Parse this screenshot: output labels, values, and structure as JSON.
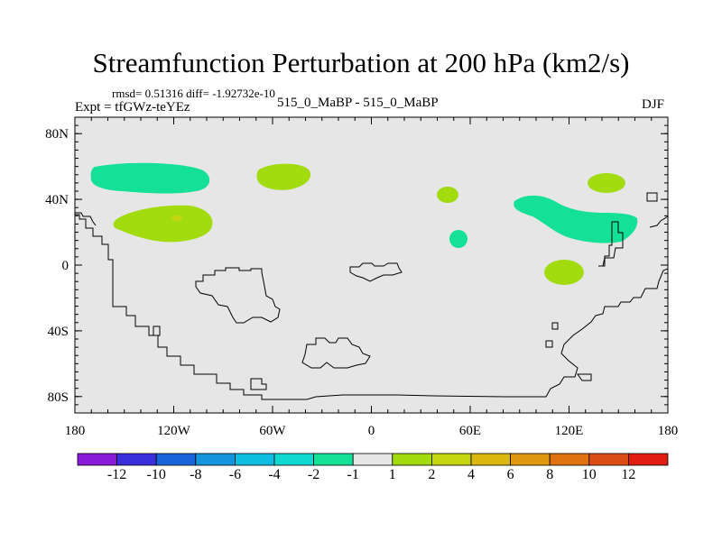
{
  "chart_data": {
    "type": "heatmap",
    "title": "Streamfunction Perturbation at 200 hPa (km2/s)",
    "stats_text": "rmsd= 0.51316 diff= -1.92732e-10",
    "experiment_text": "Expt = tfGWz-teYEz",
    "cases_text": "515_0_MaBP - 515_0_MaBP",
    "season": "DJF",
    "x_range": [
      -180,
      180
    ],
    "y_range": [
      -90,
      90
    ],
    "x_ticks": [
      {
        "value": -180,
        "label": "180"
      },
      {
        "value": -120,
        "label": "120W"
      },
      {
        "value": -60,
        "label": "60W"
      },
      {
        "value": 0,
        "label": "0"
      },
      {
        "value": 60,
        "label": "60E"
      },
      {
        "value": 120,
        "label": "120E"
      },
      {
        "value": 180,
        "label": "180"
      }
    ],
    "y_ticks": [
      {
        "value": 80,
        "label": "80N"
      },
      {
        "value": 40,
        "label": "40N"
      },
      {
        "value": 0,
        "label": "0"
      },
      {
        "value": -40,
        "label": "40S"
      },
      {
        "value": -80,
        "label": "80S"
      }
    ],
    "colorbar": {
      "colors": [
        "#8a19d9",
        "#3b2fdc",
        "#1764d9",
        "#1594de",
        "#10bde2",
        "#10d7cf",
        "#14e197",
        "#e6e6e6",
        "#a2dc0f",
        "#c4d60f",
        "#dbb80f",
        "#e0980f",
        "#e0730f",
        "#dc4d13",
        "#e01c13"
      ],
      "labels": [
        "-12",
        "-10",
        "-8",
        "-6",
        "-4",
        "-2",
        "-1",
        "1",
        "2",
        "4",
        "6",
        "8",
        "10",
        "12"
      ]
    },
    "background_color": "#e6e6e6",
    "anomaly_regions": [
      {
        "name": "north-pacific-negative",
        "level": "-2 to -1",
        "color": "#14e197",
        "lon": [
          -166,
          -97
        ],
        "lat": [
          43,
          60
        ]
      },
      {
        "name": "pacific-positive",
        "level": "1 to 2",
        "color": "#a2dc0f",
        "lon": [
          -156,
          -96
        ],
        "lat": [
          18,
          37
        ]
      },
      {
        "name": "pacific-positive-core",
        "level": "2 to 4",
        "color": "#c4d60f",
        "lon": [
          -121,
          -115
        ],
        "lat": [
          28,
          30
        ]
      },
      {
        "name": "north-atlantic-positive",
        "level": "1 to 2",
        "color": "#a2dc0f",
        "lon": [
          -53,
          -32
        ],
        "lat": [
          42,
          58
        ]
      },
      {
        "name": "arabian-positive",
        "level": "1 to 2",
        "color": "#a2dc0f",
        "lon": [
          40,
          51
        ],
        "lat": [
          38,
          47
        ]
      },
      {
        "name": "east-africa-negative",
        "level": "-2 to -1",
        "color": "#14e197",
        "lon": [
          48,
          58
        ],
        "lat": [
          10,
          20
        ]
      },
      {
        "name": "asia-negative",
        "level": "-2 to -1",
        "color": "#14e197",
        "lon": [
          86,
          162
        ],
        "lat": [
          15,
          45
        ]
      },
      {
        "name": "west-pacific-positive",
        "level": "1 to 2",
        "color": "#a2dc0f",
        "lon": [
          132,
          157
        ],
        "lat": [
          41,
          53
        ]
      },
      {
        "name": "maritime-positive",
        "level": "1 to 2",
        "color": "#a2dc0f",
        "lon": [
          106,
          129
        ],
        "lat": [
          -12,
          4
        ]
      }
    ]
  }
}
